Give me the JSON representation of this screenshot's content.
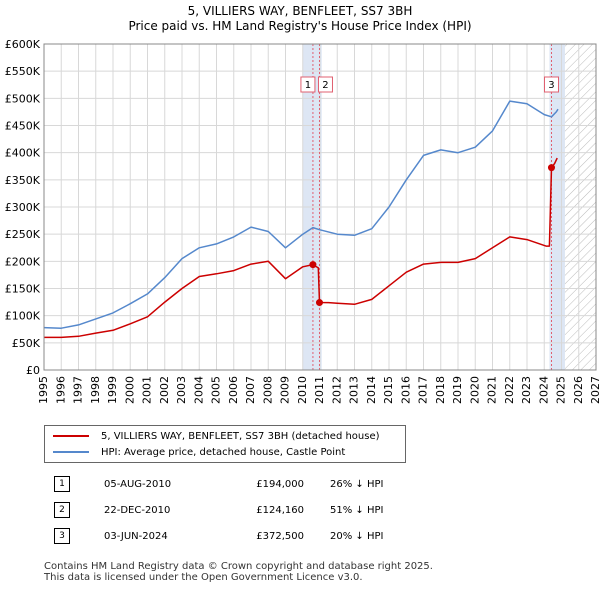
{
  "title": "5, VILLIERS WAY, BENFLEET, SS7 3BH",
  "subtitle": "Price paid vs. HM Land Registry's House Price Index (HPI)",
  "colors": {
    "property": "#cc0000",
    "hpi": "#5588cc",
    "shade": "#dde6f4",
    "marker_line": "#e06070",
    "grid": "#d8d8d8"
  },
  "chart_data": {
    "type": "line",
    "xlim": [
      1995,
      2027
    ],
    "ylim": [
      0,
      600000
    ],
    "x_ticks": [
      1995,
      1996,
      1997,
      1998,
      1999,
      2000,
      2001,
      2002,
      2003,
      2004,
      2005,
      2006,
      2007,
      2008,
      2009,
      2010,
      2011,
      2012,
      2013,
      2014,
      2015,
      2016,
      2017,
      2018,
      2019,
      2020,
      2021,
      2022,
      2023,
      2024,
      2025,
      2026,
      2027
    ],
    "y_ticks": [
      0,
      50000,
      100000,
      150000,
      200000,
      250000,
      300000,
      350000,
      400000,
      450000,
      500000,
      550000,
      600000
    ],
    "y_tick_labels": [
      "£0",
      "£50K",
      "£100K",
      "£150K",
      "£200K",
      "£250K",
      "£300K",
      "£350K",
      "£400K",
      "£450K",
      "£500K",
      "£550K",
      "£600K"
    ],
    "shaded_ranges": [
      [
        2010.0,
        2011.1
      ],
      [
        2024.3,
        2025.2
      ]
    ],
    "hatched_from": 2025.2,
    "series": [
      {
        "name": "5, VILLIERS WAY, BENFLEET, SS7 3BH (detached house)",
        "color": "#cc0000",
        "points": [
          [
            1995,
            60000
          ],
          [
            1996,
            60000
          ],
          [
            1997,
            62000
          ],
          [
            1998,
            68000
          ],
          [
            1999,
            73000
          ],
          [
            2000,
            85000
          ],
          [
            2001,
            98000
          ],
          [
            2002,
            125000
          ],
          [
            2003,
            150000
          ],
          [
            2004,
            172000
          ],
          [
            2005,
            177000
          ],
          [
            2006,
            183000
          ],
          [
            2007,
            195000
          ],
          [
            2008,
            200000
          ],
          [
            2009,
            168000
          ],
          [
            2010,
            190000
          ],
          [
            2010.59,
            194000
          ],
          [
            2010.9,
            188000
          ],
          [
            2010.97,
            124160
          ],
          [
            2011.5,
            124000
          ],
          [
            2012,
            123000
          ],
          [
            2013,
            121000
          ],
          [
            2014,
            130000
          ],
          [
            2015,
            155000
          ],
          [
            2016,
            180000
          ],
          [
            2017,
            195000
          ],
          [
            2018,
            198000
          ],
          [
            2019,
            198000
          ],
          [
            2020,
            205000
          ],
          [
            2021,
            225000
          ],
          [
            2022,
            245000
          ],
          [
            2023,
            240000
          ],
          [
            2024.1,
            228000
          ],
          [
            2024.3,
            228000
          ],
          [
            2024.42,
            372500
          ],
          [
            2024.6,
            380000
          ],
          [
            2024.75,
            390000
          ]
        ]
      },
      {
        "name": "HPI: Average price, detached house, Castle Point",
        "color": "#5588cc",
        "points": [
          [
            1995,
            78000
          ],
          [
            1996,
            77000
          ],
          [
            1997,
            83000
          ],
          [
            1998,
            94000
          ],
          [
            1999,
            105000
          ],
          [
            2000,
            122000
          ],
          [
            2001,
            140000
          ],
          [
            2002,
            170000
          ],
          [
            2003,
            205000
          ],
          [
            2004,
            225000
          ],
          [
            2005,
            232000
          ],
          [
            2006,
            245000
          ],
          [
            2007,
            263000
          ],
          [
            2008,
            255000
          ],
          [
            2009,
            225000
          ],
          [
            2010,
            250000
          ],
          [
            2010.59,
            262000
          ],
          [
            2011,
            258000
          ],
          [
            2012,
            250000
          ],
          [
            2013,
            248000
          ],
          [
            2014,
            260000
          ],
          [
            2015,
            300000
          ],
          [
            2016,
            350000
          ],
          [
            2017,
            395000
          ],
          [
            2018,
            405000
          ],
          [
            2019,
            400000
          ],
          [
            2020,
            410000
          ],
          [
            2021,
            440000
          ],
          [
            2022,
            495000
          ],
          [
            2023,
            490000
          ],
          [
            2024,
            470000
          ],
          [
            2024.42,
            466000
          ],
          [
            2024.7,
            475000
          ],
          [
            2024.8,
            480000
          ]
        ]
      }
    ],
    "markers": [
      {
        "label": "1",
        "x": 2010.59,
        "y": 194000,
        "tx_index": 0
      },
      {
        "label": "2",
        "x": 2010.97,
        "y": 124160,
        "tx_index": 1
      },
      {
        "label": "3",
        "x": 2024.42,
        "y": 372500,
        "tx_index": 2
      }
    ]
  },
  "legend": {
    "property": "5, VILLIERS WAY, BENFLEET, SS7 3BH (detached house)",
    "hpi": "HPI: Average price, detached house, Castle Point"
  },
  "transactions": [
    {
      "num": "1",
      "date": "05-AUG-2010",
      "price": "£194,000",
      "delta": "26% ↓ HPI"
    },
    {
      "num": "2",
      "date": "22-DEC-2010",
      "price": "£124,160",
      "delta": "51% ↓ HPI"
    },
    {
      "num": "3",
      "date": "03-JUN-2024",
      "price": "£372,500",
      "delta": "20% ↓ HPI"
    }
  ],
  "footer": {
    "line1": "Contains HM Land Registry data © Crown copyright and database right 2025.",
    "line2": "This data is licensed under the Open Government Licence v3.0."
  }
}
